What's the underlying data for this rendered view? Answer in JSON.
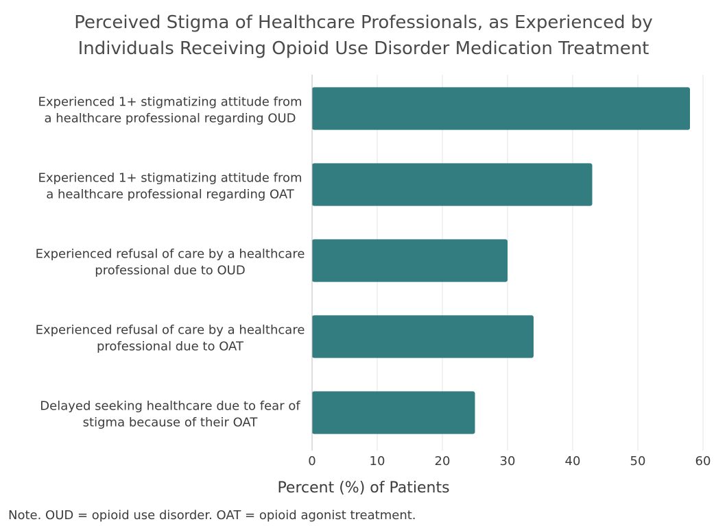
{
  "chart_data": {
    "type": "bar",
    "orientation": "horizontal",
    "title_lines": [
      "Perceived Stigma of Healthcare Professionals, as Experienced by",
      "Individuals Receiving Opioid Use Disorder Medication Treatment"
    ],
    "categories": [
      [
        "Experienced 1+ stigmatizing attitude from",
        "a healthcare professional regarding OUD"
      ],
      [
        "Experienced 1+ stigmatizing attitude from",
        "a healthcare professional regarding OAT"
      ],
      [
        "Experienced refusal of care by a healthcare",
        "professional due to OUD"
      ],
      [
        "Experienced refusal of care by a healthcare",
        "professional due to OAT"
      ],
      [
        "Delayed seeking healthcare due to fear of",
        "stigma because of their OAT"
      ]
    ],
    "values": [
      58,
      43,
      30,
      34,
      25
    ],
    "xlim": [
      0,
      60
    ],
    "xticks": [
      0,
      10,
      20,
      30,
      40,
      50,
      60
    ],
    "xlabel": "Percent (%) of Patients",
    "grid": true,
    "bar_color": "#337d80",
    "grid_color": "#e3e3e3",
    "axis_color": "#bdbdbd"
  },
  "note": "Note. OUD = opioid use disorder. OAT = opioid agonist treatment."
}
